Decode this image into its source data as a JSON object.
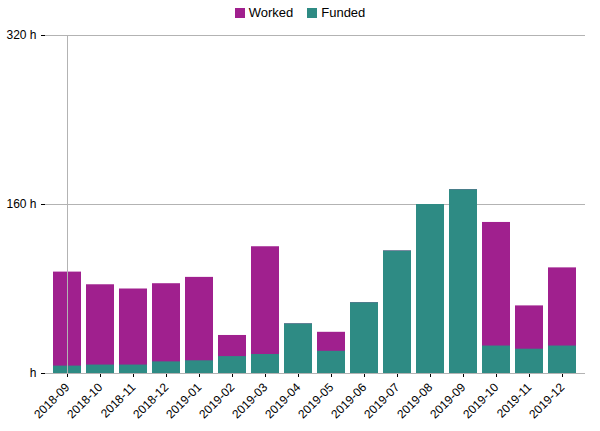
{
  "chart_data": {
    "type": "bar",
    "categories": [
      "2018-09",
      "2018-10",
      "2018-11",
      "2018-12",
      "2019-01",
      "2019-02",
      "2019-03",
      "2019-04",
      "2019-05",
      "2019-06",
      "2019-07",
      "2019-08",
      "2019-09",
      "2019-10",
      "2019-11",
      "2019-12"
    ],
    "series": [
      {
        "name": "Worked",
        "color": "#a0208e",
        "values": [
          96,
          84,
          80,
          85,
          91,
          36,
          120,
          47,
          39,
          67,
          116,
          160,
          174,
          143,
          64,
          100
        ]
      },
      {
        "name": "Funded",
        "color": "#2e8b84",
        "values": [
          7,
          8,
          8,
          11,
          12,
          16,
          18,
          47,
          21,
          67,
          116,
          160,
          174,
          26,
          23,
          26
        ]
      }
    ],
    "ylim": [
      0,
      320
    ],
    "yticks": [
      {
        "value": 0,
        "label": "h"
      },
      {
        "value": 160,
        "label": "160 h"
      },
      {
        "value": 320,
        "label": "320 h"
      }
    ],
    "grid": true,
    "legend": "top"
  }
}
